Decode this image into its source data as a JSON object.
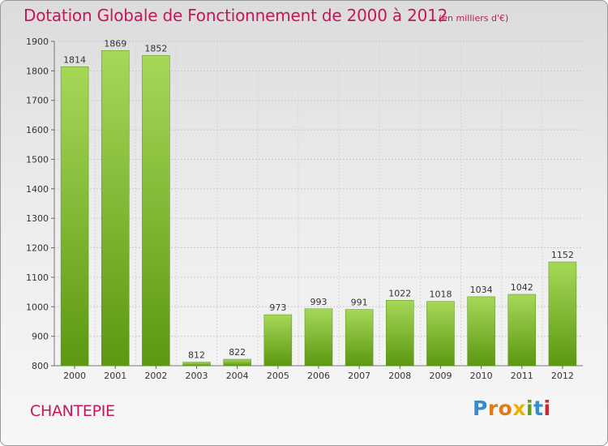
{
  "header": {
    "title": "Dotation Globale de Fonctionnement de 2000 à 2012",
    "subtitle": "(en milliers d'€)"
  },
  "footer": {
    "commune": "CHANTEPIE",
    "logo_text": "Proxiti"
  },
  "colors": {
    "title": "#c4175a",
    "bar_top": "#9fd24e",
    "bar_bottom": "#5f9a14"
  },
  "chart_data": {
    "type": "bar",
    "title": "Dotation Globale de Fonctionnement de 2000 à 2012",
    "subtitle": "(en milliers d'€)",
    "categories": [
      "2000",
      "2001",
      "2002",
      "2003",
      "2004",
      "2005",
      "2006",
      "2007",
      "2008",
      "2009",
      "2010",
      "2011",
      "2012"
    ],
    "values": [
      1814,
      1869,
      1852,
      812,
      822,
      973,
      993,
      991,
      1022,
      1018,
      1034,
      1042,
      1152
    ],
    "ylim": [
      800,
      1900
    ],
    "yticks": [
      800,
      900,
      1000,
      1100,
      1200,
      1300,
      1400,
      1500,
      1600,
      1700,
      1800,
      1900
    ],
    "xlabel": "",
    "ylabel": "",
    "grid": true,
    "legend": "none",
    "data_labels": true
  }
}
